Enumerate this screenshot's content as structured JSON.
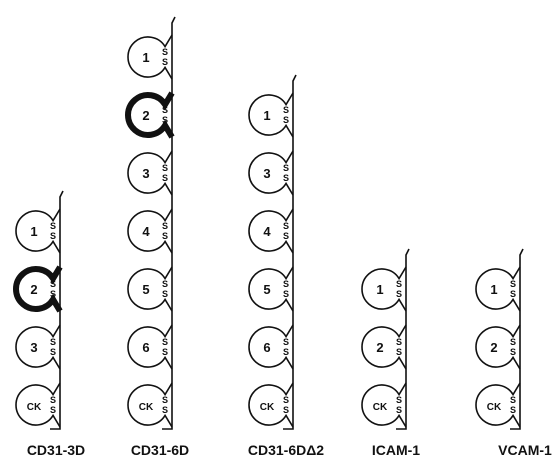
{
  "constructs": [
    {
      "name": "CD31-3D",
      "domains": [
        {
          "label": "1",
          "bold": false
        },
        {
          "label": "2",
          "bold": true
        },
        {
          "label": "3",
          "bold": false
        },
        {
          "label": "CK",
          "bold": false
        }
      ]
    },
    {
      "name": "CD31-6D",
      "domains": [
        {
          "label": "1",
          "bold": false
        },
        {
          "label": "2",
          "bold": true
        },
        {
          "label": "3",
          "bold": false
        },
        {
          "label": "4",
          "bold": false
        },
        {
          "label": "5",
          "bold": false
        },
        {
          "label": "6",
          "bold": false
        },
        {
          "label": "CK",
          "bold": false
        }
      ]
    },
    {
      "name": "CD31-6DΔ2",
      "domains": [
        {
          "label": "1",
          "bold": false
        },
        {
          "label": "3",
          "bold": false
        },
        {
          "label": "4",
          "bold": false
        },
        {
          "label": "5",
          "bold": false
        },
        {
          "label": "6",
          "bold": false
        },
        {
          "label": "CK",
          "bold": false
        }
      ]
    },
    {
      "name": "ICAM-1",
      "domains": [
        {
          "label": "1",
          "bold": false
        },
        {
          "label": "2",
          "bold": false
        },
        {
          "label": "CK",
          "bold": false
        }
      ]
    },
    {
      "name": "VCAM-1",
      "domains": [
        {
          "label": "1",
          "bold": false
        },
        {
          "label": "2",
          "bold": false
        },
        {
          "label": "CK",
          "bold": false
        }
      ]
    }
  ],
  "disulfide_label": "S"
}
